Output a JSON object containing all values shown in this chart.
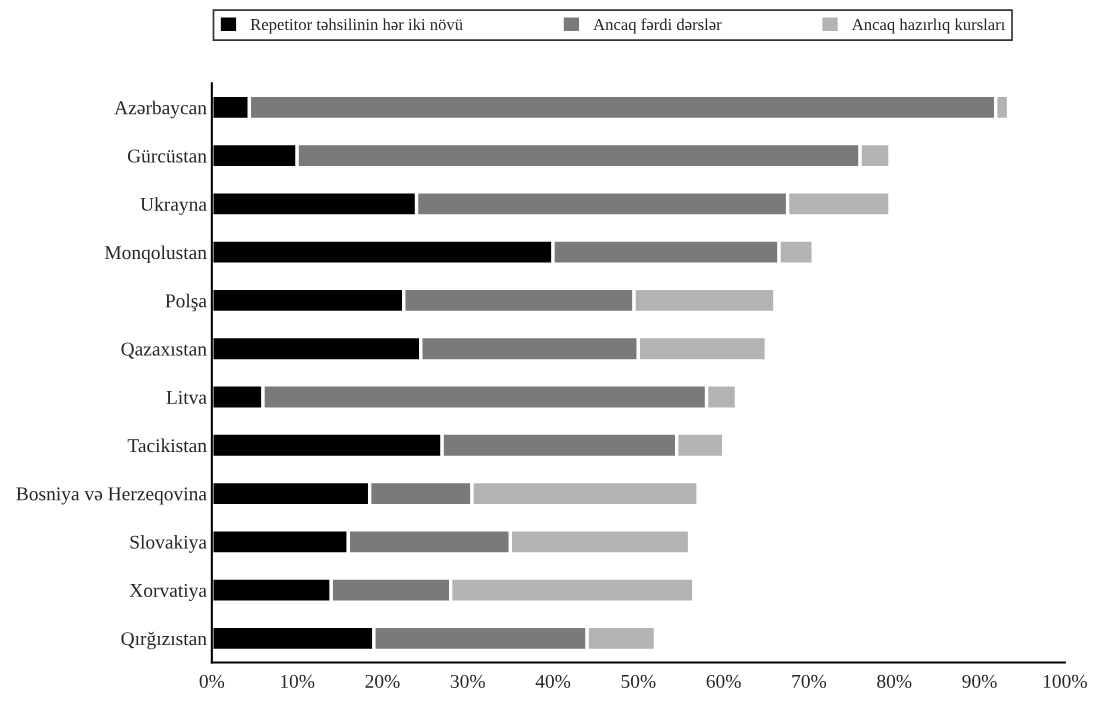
{
  "chart_data": {
    "type": "bar",
    "orientation": "horizontal",
    "stacked": true,
    "categories": [
      "Azərbaycan",
      "Gürcüstan",
      "Ukrayna",
      "Monqolustan",
      "Polşa",
      "Qazaxıstan",
      "Litva",
      "Tacikistan",
      "Bosniya və Herzeqovina",
      "Slovakiya",
      "Xorvatiya",
      "Qırğızıstan"
    ],
    "series": [
      {
        "name": "Repetitor təhsilinin hər iki növü",
        "color": "#000000",
        "values": [
          4.4,
          10,
          24,
          40,
          22.5,
          24.5,
          6,
          27,
          18.5,
          16,
          14,
          19
        ]
      },
      {
        "name": "Ancaq fərdi dərslər",
        "color": "#7a7a7c",
        "values": [
          87.5,
          66,
          43.5,
          26.5,
          27,
          25.5,
          52,
          27.5,
          12,
          19,
          14,
          25
        ]
      },
      {
        "name": "Ancaq hazırlıq kursları",
        "color": "#b3b3b5",
        "values": [
          1.5,
          3.5,
          12,
          4,
          16.5,
          15,
          3.5,
          5.5,
          26.5,
          21,
          28.5,
          8
        ]
      }
    ],
    "xlim": [
      0,
      100
    ],
    "xticks": [
      {
        "value": 0,
        "label": "0%"
      },
      {
        "value": 10,
        "label": "10%"
      },
      {
        "value": 20,
        "label": "20%"
      },
      {
        "value": 30,
        "label": "30%"
      },
      {
        "value": 40,
        "label": "40%"
      },
      {
        "value": 50,
        "label": "50%"
      },
      {
        "value": 60,
        "label": "60%"
      },
      {
        "value": 70,
        "label": "70%"
      },
      {
        "value": 80,
        "label": "80%"
      },
      {
        "value": 90,
        "label": "90%"
      },
      {
        "value": 100,
        "label": "100%"
      }
    ],
    "grid": false,
    "legend": "top"
  }
}
